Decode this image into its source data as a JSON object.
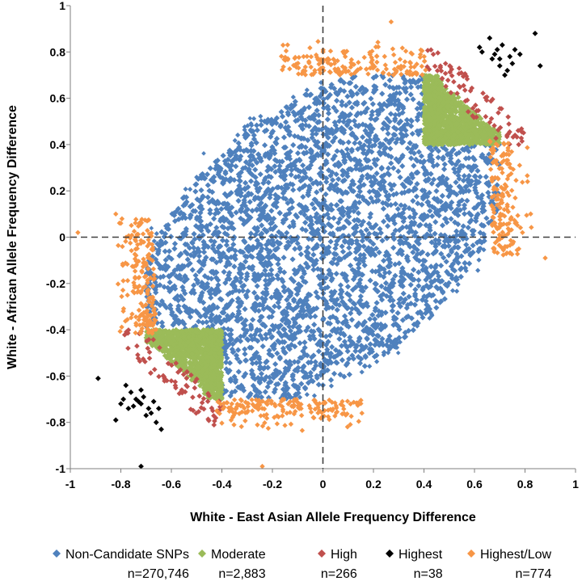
{
  "chart_data": {
    "type": "scatter",
    "title": "",
    "xlabel": "White - East Asian Allele Frequency Difference",
    "ylabel": "White - African Allele Frequency Difference",
    "xlim": [
      -1,
      1
    ],
    "ylim": [
      -1,
      1
    ],
    "x_ticks": [
      "-1",
      "-0.8",
      "-0.6",
      "-0.4",
      "-0.2",
      "0",
      "0.2",
      "0.4",
      "0.6",
      "0.8",
      "1"
    ],
    "y_ticks": [
      "1",
      "0.8",
      "0.6",
      "0.4",
      "0.2",
      "0",
      "-0.2",
      "-0.4",
      "-0.6",
      "-0.8",
      "-1"
    ],
    "grid": false,
    "reference_lines": [
      "x = 0 (dashed)",
      "y = 0 (dashed)"
    ],
    "legend_position": "bottom",
    "series": [
      {
        "name": "Non-Candidate SNPs",
        "count_label": "n=270,746",
        "color": "#4f81bd",
        "marker": "diamond",
        "region": "dense elliptical cloud centered at (0, 0), roughly spanning x -0.68 to 0.68 and y -0.70 to 0.70, excluding the candidate corner regions"
      },
      {
        "name": "Moderate",
        "count_label": "n=2,883",
        "color": "#9bbb59",
        "marker": "diamond",
        "region": "x 0.4 to 0.7, y 0.4 to 0.7 and x -0.7 to -0.4, y -0.7 to -0.4"
      },
      {
        "name": "High",
        "count_label": "n=266",
        "color": "#c0504d",
        "marker": "diamond",
        "region": "outer corner edges beyond the Moderate regions"
      },
      {
        "name": "Highest",
        "count_label": "n=38",
        "color": "#000000",
        "marker": "diamond",
        "points": [
          [
            0.62,
            0.82
          ],
          [
            0.66,
            0.86
          ],
          [
            0.69,
            0.81
          ],
          [
            0.7,
            0.77
          ],
          [
            0.74,
            0.78
          ],
          [
            0.78,
            0.79
          ],
          [
            0.84,
            0.88
          ],
          [
            0.86,
            0.74
          ],
          [
            0.7,
            0.74
          ],
          [
            0.72,
            0.7
          ],
          [
            0.63,
            0.8
          ],
          [
            0.67,
            0.77
          ],
          [
            0.75,
            0.75
          ],
          [
            0.71,
            0.83
          ],
          [
            0.68,
            0.79
          ],
          [
            0.73,
            0.72
          ],
          [
            0.76,
            0.81
          ],
          [
            -0.89,
            -0.61
          ],
          [
            -0.82,
            -0.79
          ],
          [
            -0.72,
            -0.99
          ],
          [
            -0.78,
            -0.64
          ],
          [
            -0.76,
            -0.67
          ],
          [
            -0.74,
            -0.7
          ],
          [
            -0.72,
            -0.72
          ],
          [
            -0.71,
            -0.69
          ],
          [
            -0.69,
            -0.74
          ],
          [
            -0.77,
            -0.74
          ],
          [
            -0.68,
            -0.76
          ],
          [
            -0.66,
            -0.8
          ],
          [
            -0.64,
            -0.83
          ],
          [
            -0.79,
            -0.7
          ],
          [
            -0.7,
            -0.77
          ],
          [
            -0.73,
            -0.71
          ],
          [
            -0.75,
            -0.73
          ],
          [
            -0.8,
            -0.72
          ],
          [
            -0.67,
            -0.71
          ],
          [
            -0.72,
            -0.66
          ],
          [
            -0.65,
            -0.74
          ]
        ]
      },
      {
        "name": "Highest/Low",
        "count_label": "n=774",
        "color": "#f79646",
        "marker": "diamond",
        "region": "rim bands: y 0.7 to 0.93 near x -0.15 to 0.4; y -0.7 to -0.93 near x -0.4 to 0.15; x 0.66 to 0.88 near y -0.05 to 0.4; x -0.66 to -0.88 near y -0.4 to 0.1"
      }
    ]
  }
}
